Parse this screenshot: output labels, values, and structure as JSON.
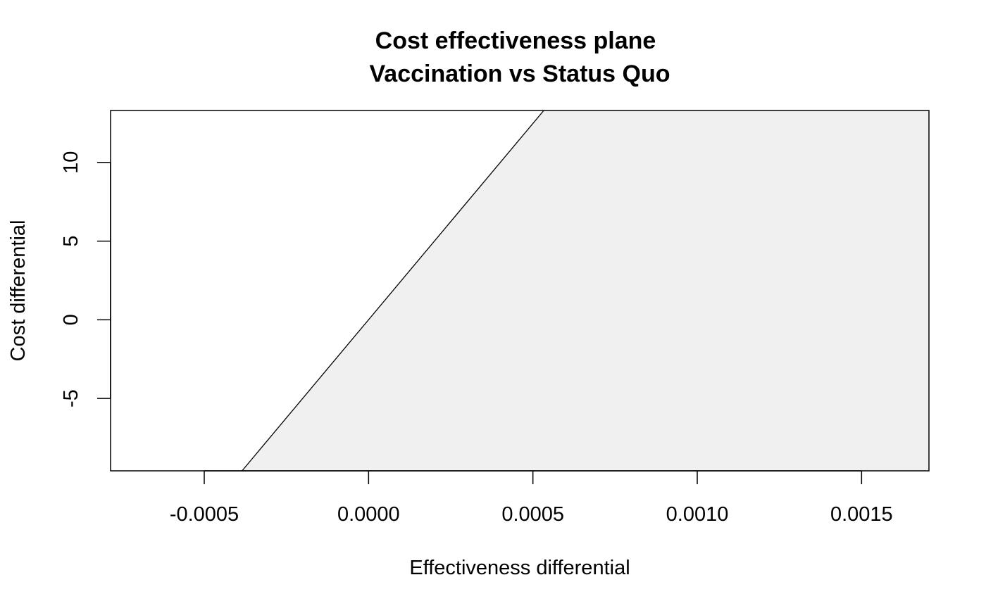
{
  "chart_data": {
    "type": "area",
    "title": "Cost effectiveness plane",
    "subtitle": "Vaccination vs Status Quo",
    "xlabel": "Effectiveness differential",
    "ylabel": "Cost differential",
    "xlim": [
      -0.000785,
      0.001705
    ],
    "ylim": [
      -9.6,
      13.3
    ],
    "xticks": [
      -0.0005,
      0.0,
      0.0005,
      0.001,
      0.0015
    ],
    "xtick_labels": [
      "-0.0005",
      "0.0000",
      "0.0005",
      "0.0010",
      "0.0015"
    ],
    "yticks": [
      -5,
      0,
      5,
      10
    ],
    "ytick_labels": [
      "-5",
      "0",
      "5",
      "10"
    ],
    "wtp_line": {
      "slope": 24950,
      "points": [
        {
          "x": -0.000385,
          "y": -9.6
        },
        {
          "x": 0.000533,
          "y": 13.3
        }
      ]
    },
    "sustainability_area": {
      "fill": "#F0F0F0",
      "description_side": "right"
    },
    "grid": false,
    "legend": "none"
  }
}
